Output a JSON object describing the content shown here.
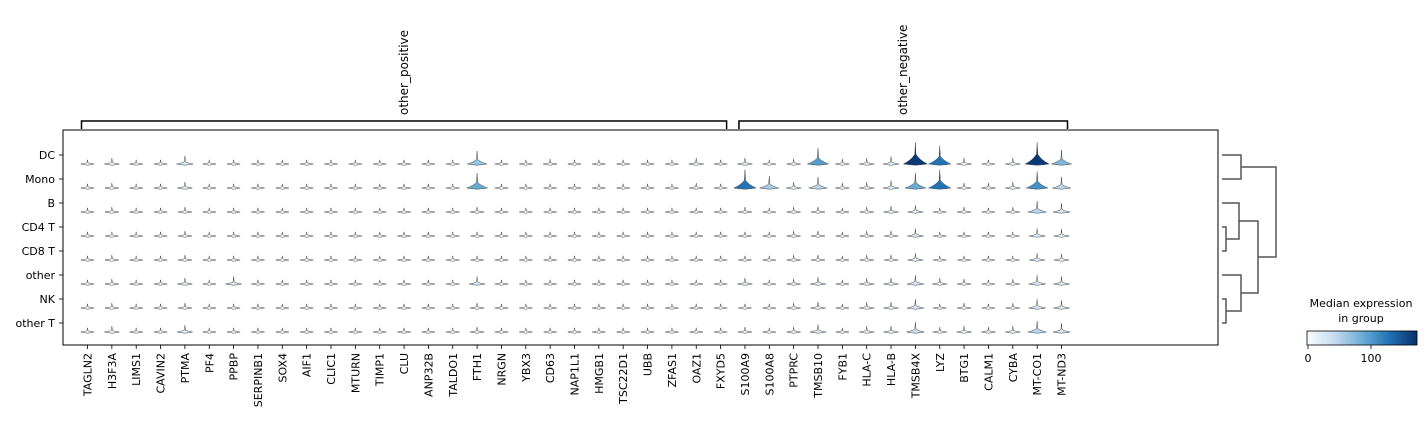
{
  "chart_data": {
    "type": "violin",
    "groups": [
      "DC",
      "Mono",
      "B",
      "CD4 T",
      "CD8 T",
      "other",
      "NK",
      "other T"
    ],
    "gene_sets": [
      {
        "label": "other_positive",
        "genes": [
          "TAGLN2",
          "H3F3A",
          "LIMS1",
          "CAVIN2",
          "PTMA",
          "PF4",
          "PPBP",
          "SERPINB1",
          "SOX4",
          "AIF1",
          "CLIC1",
          "MTURN",
          "TIMP1",
          "CLU",
          "ANP32B",
          "TALDO1",
          "FTH1",
          "NRGN",
          "YBX3",
          "CD63",
          "NAP1L1",
          "HMGB1",
          "TSC22D1",
          "UBB",
          "ZFAS1",
          "OAZ1",
          "FXYD5"
        ]
      },
      {
        "label": "other_negative",
        "genes": [
          "S100A9",
          "S100A8",
          "PTPRC",
          "TMSB10",
          "FYB1",
          "HLA-C",
          "HLA-B",
          "TMSB4X",
          "LYZ",
          "BTG1",
          "CALM1",
          "CYBA",
          "MT-CO1",
          "MT-ND3"
        ]
      }
    ],
    "genes": [
      "TAGLN2",
      "H3F3A",
      "LIMS1",
      "CAVIN2",
      "PTMA",
      "PF4",
      "PPBP",
      "SERPINB1",
      "SOX4",
      "AIF1",
      "CLIC1",
      "MTURN",
      "TIMP1",
      "CLU",
      "ANP32B",
      "TALDO1",
      "FTH1",
      "NRGN",
      "YBX3",
      "CD63",
      "NAP1L1",
      "HMGB1",
      "TSC22D1",
      "UBB",
      "ZFAS1",
      "OAZ1",
      "FXYD5",
      "S100A9",
      "S100A8",
      "PTPRC",
      "TMSB10",
      "FYB1",
      "HLA-C",
      "HLA-B",
      "TMSB4X",
      "LYZ",
      "BTG1",
      "CALM1",
      "CYBA",
      "MT-CO1",
      "MT-ND3"
    ],
    "median_expression": [
      [
        2,
        10,
        2,
        2,
        25,
        2,
        2,
        2,
        2,
        2,
        2,
        2,
        2,
        2,
        2,
        2,
        70,
        2,
        2,
        5,
        2,
        2,
        2,
        2,
        2,
        10,
        2,
        10,
        2,
        5,
        100,
        5,
        10,
        20,
        170,
        130,
        10,
        2,
        10,
        170,
        80
      ],
      [
        2,
        5,
        2,
        2,
        10,
        2,
        2,
        2,
        2,
        2,
        2,
        2,
        2,
        2,
        2,
        2,
        90,
        2,
        2,
        2,
        2,
        2,
        2,
        2,
        2,
        5,
        2,
        130,
        60,
        10,
        50,
        5,
        10,
        20,
        90,
        130,
        5,
        5,
        10,
        110,
        50
      ],
      [
        2,
        5,
        2,
        2,
        5,
        2,
        2,
        2,
        2,
        2,
        2,
        2,
        2,
        2,
        2,
        2,
        5,
        2,
        2,
        2,
        2,
        2,
        2,
        2,
        2,
        2,
        2,
        5,
        2,
        5,
        5,
        2,
        5,
        10,
        15,
        2,
        5,
        2,
        5,
        50,
        30
      ],
      [
        2,
        2,
        2,
        2,
        5,
        2,
        2,
        2,
        2,
        2,
        2,
        2,
        2,
        2,
        2,
        2,
        2,
        2,
        2,
        2,
        2,
        2,
        2,
        2,
        2,
        2,
        2,
        2,
        2,
        5,
        5,
        2,
        5,
        5,
        20,
        2,
        2,
        2,
        2,
        20,
        15
      ],
      [
        2,
        5,
        2,
        2,
        5,
        2,
        2,
        2,
        2,
        2,
        2,
        2,
        2,
        2,
        2,
        2,
        2,
        2,
        2,
        2,
        2,
        2,
        2,
        2,
        2,
        2,
        2,
        2,
        2,
        5,
        5,
        2,
        5,
        5,
        15,
        2,
        2,
        2,
        2,
        15,
        10
      ],
      [
        2,
        5,
        2,
        2,
        10,
        2,
        20,
        2,
        2,
        2,
        2,
        2,
        2,
        2,
        2,
        2,
        20,
        2,
        2,
        2,
        2,
        2,
        2,
        2,
        2,
        2,
        2,
        10,
        2,
        5,
        15,
        2,
        10,
        10,
        30,
        10,
        5,
        2,
        5,
        30,
        20
      ],
      [
        2,
        5,
        2,
        2,
        5,
        2,
        2,
        2,
        2,
        2,
        2,
        2,
        2,
        2,
        2,
        2,
        5,
        2,
        2,
        2,
        2,
        2,
        2,
        2,
        2,
        2,
        2,
        2,
        2,
        5,
        10,
        2,
        10,
        10,
        30,
        2,
        5,
        2,
        5,
        30,
        20
      ],
      [
        2,
        10,
        2,
        2,
        15,
        2,
        2,
        2,
        2,
        2,
        2,
        2,
        2,
        2,
        2,
        2,
        5,
        2,
        2,
        2,
        2,
        2,
        2,
        2,
        2,
        2,
        2,
        5,
        2,
        5,
        20,
        2,
        10,
        10,
        40,
        5,
        10,
        5,
        10,
        50,
        30
      ]
    ],
    "dendrogram_order": [
      "DC",
      "Mono",
      "B",
      "CD4 T",
      "CD8 T",
      "other",
      "NK",
      "other T"
    ],
    "colorbar": {
      "title_line1": "Median expression",
      "title_line2": "in group",
      "ticks": [
        "0",
        "100"
      ],
      "range": [
        0,
        175
      ],
      "colormap": "Blues",
      "low_color": "#f7fbff",
      "high_color": "#08306b"
    }
  }
}
